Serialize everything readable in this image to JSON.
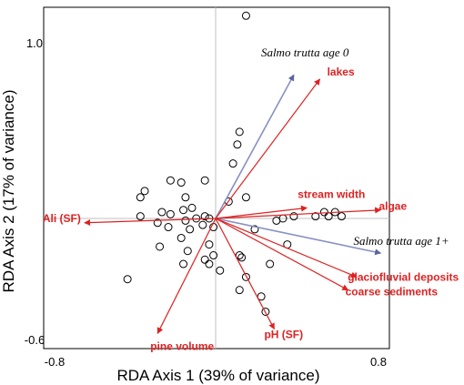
{
  "chart_data": {
    "type": "scatter",
    "xlabel": "RDA Axis 1 (39% of variance)",
    "ylabel": "RDA Axis 2 (17% of variance)",
    "xlim": [
      -0.8,
      0.8
    ],
    "ylim": [
      -0.6,
      1.0
    ],
    "x_ticks": [
      "-0.8",
      "0.8"
    ],
    "y_ticks": [
      "1.0",
      "-0.6"
    ],
    "reference_lines": [
      0,
      0
    ],
    "colors": {
      "environment": "#dd2222",
      "species": "#8890c0",
      "zero_lines": "#c0c0c0",
      "sites": "#000000"
    },
    "environment_vectors": [
      {
        "label": "lakes",
        "x": 0.48,
        "y": 0.66
      },
      {
        "label": "stream width",
        "x": 0.42,
        "y": 0.05
      },
      {
        "label": "algae",
        "x": 0.76,
        "y": 0.04
      },
      {
        "label": "Ali (SF)",
        "x": -0.61,
        "y": -0.02
      },
      {
        "label": "glaciofluvial deposits",
        "x": 0.65,
        "y": -0.27
      },
      {
        "label": "coarse sediments",
        "x": 0.61,
        "y": -0.33
      },
      {
        "label": "pine volume",
        "x": -0.27,
        "y": -0.53
      },
      {
        "label": "pH (SF)",
        "x": 0.27,
        "y": -0.51
      }
    ],
    "species_vectors": [
      {
        "label": "Salmo trutta age 0",
        "x": 0.36,
        "y": 0.68
      },
      {
        "label": "Salmo trutta age 1+",
        "x": 0.76,
        "y": -0.16
      }
    ],
    "sites": [
      {
        "x": 0.14,
        "y": 0.96
      },
      {
        "x": 0.11,
        "y": 0.41
      },
      {
        "x": 0.1,
        "y": 0.35
      },
      {
        "x": 0.08,
        "y": 0.26
      },
      {
        "x": 0.14,
        "y": 0.1
      },
      {
        "x": 0.06,
        "y": 0.08
      },
      {
        "x": -0.05,
        "y": 0.18
      },
      {
        "x": -0.21,
        "y": 0.18
      },
      {
        "x": -0.16,
        "y": 0.17
      },
      {
        "x": -0.33,
        "y": 0.13
      },
      {
        "x": -0.35,
        "y": 0.1
      },
      {
        "x": -0.14,
        "y": 0.1
      },
      {
        "x": -0.11,
        "y": 0.05
      },
      {
        "x": -0.25,
        "y": 0.03
      },
      {
        "x": -0.21,
        "y": 0.02
      },
      {
        "x": -0.35,
        "y": 0.01
      },
      {
        "x": -0.15,
        "y": 0.04
      },
      {
        "x": -0.09,
        "y": 0.0
      },
      {
        "x": -0.05,
        "y": 0.01
      },
      {
        "x": -0.03,
        "y": 0.0
      },
      {
        "x": -0.06,
        "y": -0.03
      },
      {
        "x": -0.01,
        "y": -0.04
      },
      {
        "x": -0.27,
        "y": -0.02
      },
      {
        "x": -0.14,
        "y": -0.01
      },
      {
        "x": -0.12,
        "y": -0.05
      },
      {
        "x": -0.22,
        "y": -0.04
      },
      {
        "x": -0.16,
        "y": -0.09
      },
      {
        "x": -0.26,
        "y": -0.13
      },
      {
        "x": -0.13,
        "y": -0.15
      },
      {
        "x": -0.03,
        "y": -0.12
      },
      {
        "x": -0.05,
        "y": -0.19
      },
      {
        "x": -0.15,
        "y": -0.21
      },
      {
        "x": -0.03,
        "y": -0.21
      },
      {
        "x": 0.02,
        "y": -0.24
      },
      {
        "x": -0.01,
        "y": -0.17
      },
      {
        "x": 0.11,
        "y": -0.17
      },
      {
        "x": 0.12,
        "y": -0.18
      },
      {
        "x": 0.14,
        "y": -0.27
      },
      {
        "x": 0.11,
        "y": -0.33
      },
      {
        "x": 0.21,
        "y": -0.36
      },
      {
        "x": 0.23,
        "y": -0.43
      },
      {
        "x": 0.25,
        "y": -0.21
      },
      {
        "x": 0.18,
        "y": -0.05
      },
      {
        "x": 0.28,
        "y": -0.01
      },
      {
        "x": 0.33,
        "y": -0.12
      },
      {
        "x": 0.31,
        "y": 0.0
      },
      {
        "x": 0.36,
        "y": 0.01
      },
      {
        "x": 0.46,
        "y": 0.01
      },
      {
        "x": 0.5,
        "y": 0.03
      },
      {
        "x": 0.52,
        "y": 0.01
      },
      {
        "x": 0.55,
        "y": 0.03
      },
      {
        "x": 0.58,
        "y": 0.01
      },
      {
        "x": -0.41,
        "y": -0.28
      }
    ]
  }
}
